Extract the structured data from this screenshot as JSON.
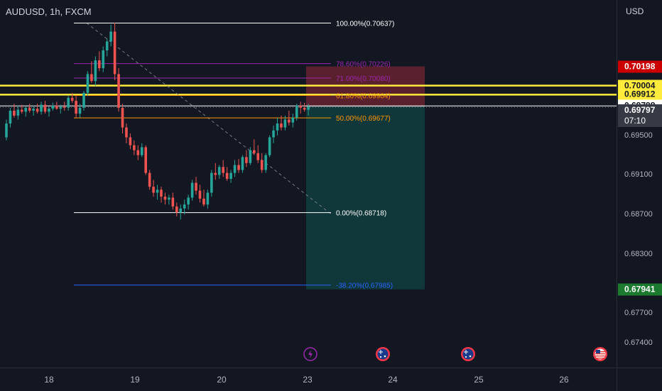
{
  "header": {
    "symbol_title": "AUDUSD, 1h, FXCM"
  },
  "price_axis": {
    "currency": "USD",
    "ticks": [
      "0.69500",
      "0.69100",
      "0.68700",
      "0.68300",
      "0.67700",
      "0.67400"
    ],
    "badges": [
      {
        "text": "0.70198",
        "bg": "#cc0000",
        "fg": "#ffffff"
      },
      {
        "text": "0.70004",
        "bg": "#ffeb3b",
        "fg": "#131722"
      },
      {
        "text": "0.69912",
        "bg": "#ffeb3b",
        "fg": "#131722"
      },
      {
        "text": "0.69798",
        "bg": "#ffffff",
        "fg": "#131722"
      },
      {
        "text": "0.67941",
        "bg": "#1b7a2e",
        "fg": "#ffffff"
      }
    ],
    "last_price": {
      "price": "0.69797",
      "countdown": "07:10",
      "bg": "#363a45",
      "fg": "#ffffff"
    }
  },
  "time_axis": {
    "labels": [
      "18",
      "19",
      "20",
      "23",
      "24",
      "25",
      "26"
    ]
  },
  "chart_data": {
    "type": "candlestick",
    "symbol": "AUDUSD",
    "interval": "1h",
    "source": "FXCM",
    "currency": "USD",
    "ylim": [
      0.6715,
      0.7087
    ],
    "candles_ohlc": [
      [
        0.6948,
        0.6966,
        0.6945,
        0.6962
      ],
      [
        0.6962,
        0.6978,
        0.6958,
        0.6975
      ],
      [
        0.6975,
        0.6982,
        0.6968,
        0.697
      ],
      [
        0.697,
        0.698,
        0.6966,
        0.6976
      ],
      [
        0.6976,
        0.6981,
        0.6972,
        0.6974
      ],
      [
        0.6974,
        0.6979,
        0.6969,
        0.6978
      ],
      [
        0.6978,
        0.6982,
        0.6973,
        0.6975
      ],
      [
        0.6975,
        0.698,
        0.697,
        0.6977
      ],
      [
        0.6977,
        0.6982,
        0.6972,
        0.6974
      ],
      [
        0.6974,
        0.6984,
        0.6971,
        0.6981
      ],
      [
        0.6981,
        0.6985,
        0.6972,
        0.6974
      ],
      [
        0.6974,
        0.6979,
        0.6969,
        0.6977
      ],
      [
        0.6977,
        0.6983,
        0.6975,
        0.698
      ],
      [
        0.698,
        0.6984,
        0.6976,
        0.6977
      ],
      [
        0.6977,
        0.6981,
        0.6972,
        0.6979
      ],
      [
        0.6979,
        0.6984,
        0.6975,
        0.6978
      ],
      [
        0.6978,
        0.699,
        0.6975,
        0.6988
      ],
      [
        0.6988,
        0.6993,
        0.6983,
        0.6985
      ],
      [
        0.6985,
        0.699,
        0.6968,
        0.6972
      ],
      [
        0.6972,
        0.6982,
        0.6968,
        0.6978
      ],
      [
        0.6978,
        0.6995,
        0.6975,
        0.6993
      ],
      [
        0.6993,
        0.7015,
        0.699,
        0.7012
      ],
      [
        0.7012,
        0.7025,
        0.7003,
        0.7005
      ],
      [
        0.7005,
        0.703,
        0.7,
        0.7026
      ],
      [
        0.7026,
        0.7035,
        0.7015,
        0.7018
      ],
      [
        0.7018,
        0.704,
        0.7014,
        0.7036
      ],
      [
        0.7036,
        0.7048,
        0.703,
        0.7045
      ],
      [
        0.7045,
        0.7062,
        0.704,
        0.7055
      ],
      [
        0.7055,
        0.7064,
        0.7006,
        0.7012
      ],
      [
        0.7012,
        0.7018,
        0.6974,
        0.6978
      ],
      [
        0.6978,
        0.6982,
        0.6952,
        0.6958
      ],
      [
        0.6958,
        0.6962,
        0.6942,
        0.6948
      ],
      [
        0.6948,
        0.6952,
        0.6936,
        0.694
      ],
      [
        0.694,
        0.6945,
        0.693,
        0.6935
      ],
      [
        0.6935,
        0.694,
        0.6925,
        0.693
      ],
      [
        0.693,
        0.6942,
        0.6928,
        0.6938
      ],
      [
        0.6938,
        0.694,
        0.691,
        0.6912
      ],
      [
        0.6912,
        0.6915,
        0.6895,
        0.6898
      ],
      [
        0.6898,
        0.6905,
        0.6888,
        0.6892
      ],
      [
        0.6892,
        0.69,
        0.6885,
        0.6895
      ],
      [
        0.6895,
        0.6898,
        0.6882,
        0.6888
      ],
      [
        0.6888,
        0.6892,
        0.688,
        0.6885
      ],
      [
        0.6885,
        0.689,
        0.688,
        0.6887
      ],
      [
        0.6887,
        0.6892,
        0.6875,
        0.6878
      ],
      [
        0.6878,
        0.6882,
        0.6868,
        0.6872
      ],
      [
        0.6872,
        0.688,
        0.6865,
        0.6876
      ],
      [
        0.6876,
        0.6885,
        0.687,
        0.688
      ],
      [
        0.688,
        0.689,
        0.6875,
        0.6887
      ],
      [
        0.6887,
        0.6905,
        0.6884,
        0.6902
      ],
      [
        0.6902,
        0.6908,
        0.689,
        0.6894
      ],
      [
        0.6894,
        0.69,
        0.6882,
        0.6886
      ],
      [
        0.6886,
        0.6895,
        0.6878,
        0.688
      ],
      [
        0.688,
        0.6895,
        0.6876,
        0.6892
      ],
      [
        0.6892,
        0.6915,
        0.6888,
        0.6912
      ],
      [
        0.6912,
        0.6922,
        0.6905,
        0.691
      ],
      [
        0.691,
        0.692,
        0.6906,
        0.6918
      ],
      [
        0.6918,
        0.6925,
        0.6908,
        0.6912
      ],
      [
        0.6912,
        0.6918,
        0.6904,
        0.6906
      ],
      [
        0.6906,
        0.6915,
        0.6902,
        0.6912
      ],
      [
        0.6912,
        0.6925,
        0.6908,
        0.692
      ],
      [
        0.692,
        0.6926,
        0.6912,
        0.6915
      ],
      [
        0.6915,
        0.693,
        0.6912,
        0.6928
      ],
      [
        0.6928,
        0.6935,
        0.6918,
        0.6922
      ],
      [
        0.6922,
        0.6938,
        0.692,
        0.6935
      ],
      [
        0.6935,
        0.6946,
        0.693,
        0.6932
      ],
      [
        0.6932,
        0.694,
        0.6922,
        0.6925
      ],
      [
        0.6925,
        0.6932,
        0.6912,
        0.6915
      ],
      [
        0.6915,
        0.6932,
        0.6912,
        0.693
      ],
      [
        0.693,
        0.695,
        0.6928,
        0.6948
      ],
      [
        0.6948,
        0.696,
        0.6942,
        0.6955
      ],
      [
        0.6955,
        0.6968,
        0.695,
        0.6962
      ],
      [
        0.6962,
        0.697,
        0.6955,
        0.6958
      ],
      [
        0.6958,
        0.697,
        0.6955,
        0.6966
      ],
      [
        0.6966,
        0.6975,
        0.696,
        0.6963
      ],
      [
        0.6963,
        0.6972,
        0.6958,
        0.6968
      ],
      [
        0.6968,
        0.6982,
        0.6965,
        0.698
      ],
      [
        0.698,
        0.6984,
        0.6972,
        0.6978
      ],
      [
        0.6978,
        0.6983,
        0.6974,
        0.6976
      ],
      [
        0.6976,
        0.6982,
        0.697,
        0.6979
      ]
    ],
    "fibonacci": [
      {
        "level": "100.00%(0.70637)",
        "price": 0.70637,
        "color": "#ffffff"
      },
      {
        "level": "78.60%(0.70226)",
        "price": 0.70226,
        "color": "#9c27b0"
      },
      {
        "level": "71.00%(0.70080)",
        "price": 0.7008,
        "color": "#9c27b0"
      },
      {
        "level": "61.80%(0.69904)",
        "price": 0.69904,
        "color": "#ff9800"
      },
      {
        "level": "50.00%(0.69677)",
        "price": 0.69677,
        "color": "#ff9800"
      },
      {
        "level": "0.00%(0.68718)",
        "price": 0.68718,
        "color": "#ffffff"
      },
      {
        "level": "-38.20%(0.67985)",
        "price": 0.67985,
        "color": "#2962ff"
      }
    ],
    "horizontal_lines": [
      {
        "price": 0.70004,
        "color": "#ffeb3b"
      },
      {
        "price": 0.69912,
        "color": "#ffeb3b"
      },
      {
        "price": 0.69798,
        "color": "#ffffff"
      }
    ],
    "position": {
      "type": "short",
      "entry": 0.69798,
      "stop": 0.70198,
      "target": 0.67941
    },
    "event_icons": [
      "lightning-icon",
      "australia-flag-icon",
      "australia-flag-icon",
      "usa-flag-icon"
    ],
    "colors": {
      "up": "#26a69a",
      "down": "#ef5350",
      "background": "#131722"
    },
    "grid": false
  }
}
